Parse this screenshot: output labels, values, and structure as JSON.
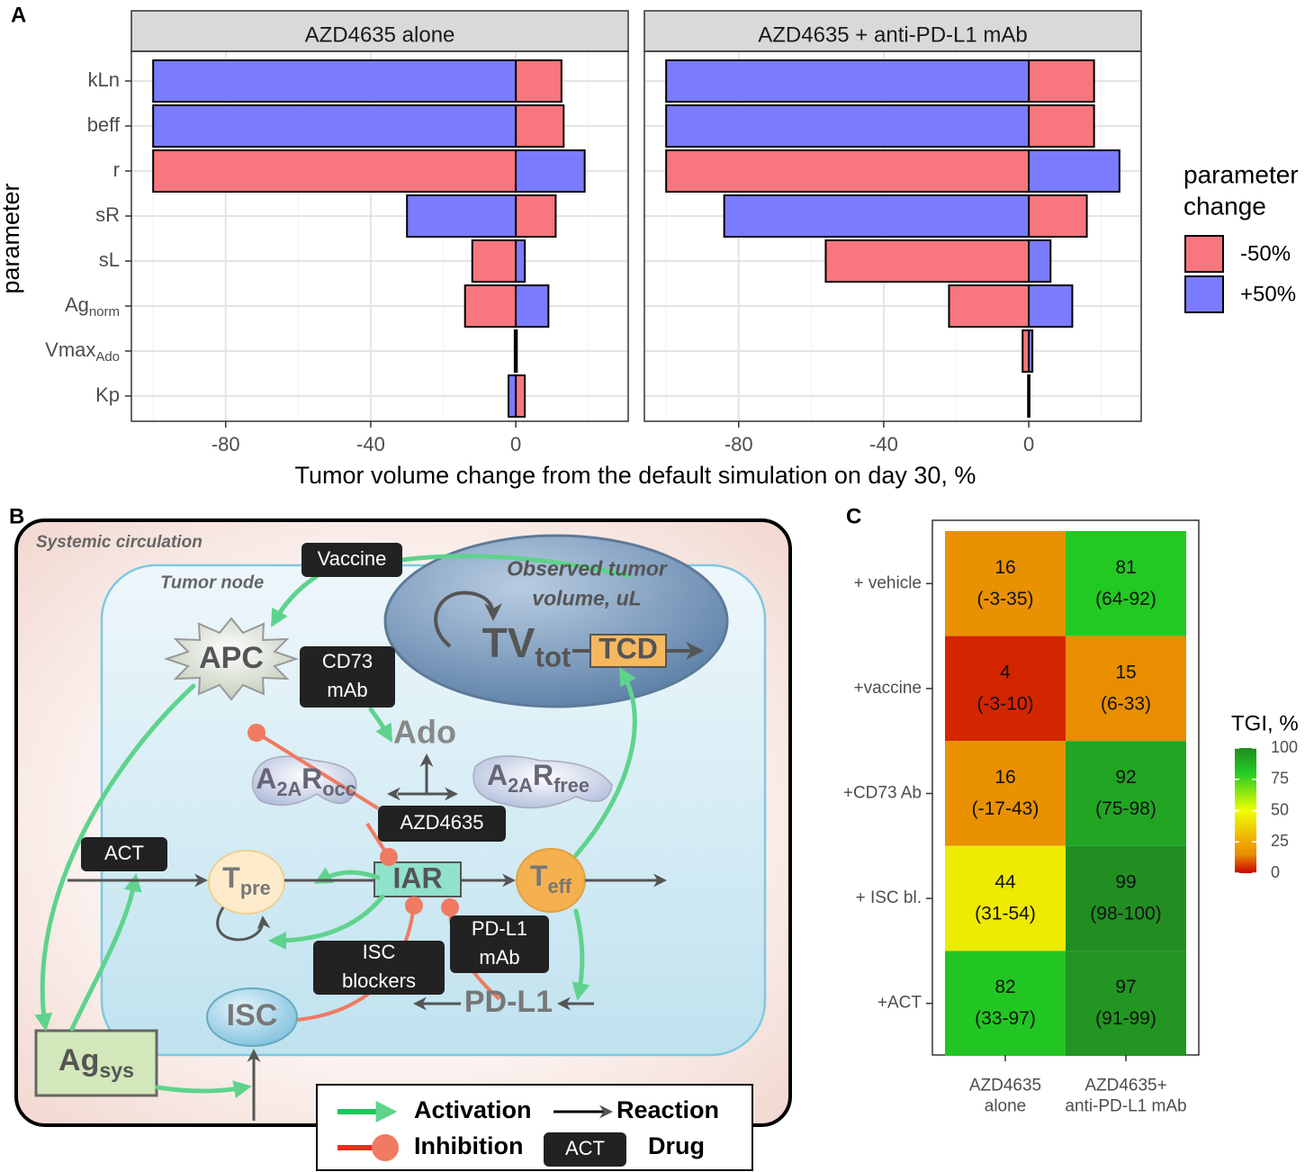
{
  "panel_labels": [
    "A",
    "B",
    "C"
  ],
  "chart_data": [
    {
      "type": "bar",
      "orientation": "horizontal",
      "facets": [
        "AZD4635 alone",
        "AZD4635 + anti-PD-L1 mAb"
      ],
      "categories": [
        "kLn",
        "beff",
        "r",
        "sR",
        "sL",
        {
          "text": "Ag",
          "sub": "norm"
        },
        {
          "text": "Vmax",
          "sub": "Ado"
        },
        "Kp"
      ],
      "series": [
        {
          "name": "-50%",
          "color": "#f8767d",
          "values": [
            [
              12.6,
              13.2,
              -100,
              11,
              -12,
              -14,
              0.3,
              2.5
            ],
            [
              18,
              18,
              -100,
              16,
              -56,
              -22,
              -1.7,
              0.2
            ]
          ]
        },
        {
          "name": "+50%",
          "color": "#7b7bff",
          "values": [
            [
              -100,
              -100,
              19,
              -30,
              2.5,
              9,
              -0.3,
              -2
            ],
            [
              -100,
              -100,
              25,
              -84,
              6,
              12,
              1,
              -0.2
            ]
          ]
        }
      ],
      "xlim": [
        -106,
        31
      ],
      "xticks": [
        -80,
        -40,
        0
      ],
      "x_minor_ticks": [
        -100,
        -60,
        -20,
        20
      ],
      "x_label": "Tumor volume change from the default simulation on day 30, %",
      "y_label": "parameter",
      "legend_title": [
        "parameter",
        "change"
      ],
      "grid": true
    },
    {
      "type": "heatmap",
      "rows": [
        "+ vehicle",
        "+vaccine",
        "+CD73 Ab",
        "+ ISC bl.",
        "+ACT"
      ],
      "columns": [
        [
          "AZD4635",
          "alone"
        ],
        [
          "AZD4635+",
          "anti-PD-L1 mAb"
        ]
      ],
      "values": [
        [
          16,
          81
        ],
        [
          4,
          15
        ],
        [
          16,
          92
        ],
        [
          44,
          99
        ],
        [
          82,
          97
        ]
      ],
      "intervals": [
        [
          "(-3-35)",
          "(64-92)"
        ],
        [
          "(-3-10)",
          "(6-33)"
        ],
        [
          "(-17-43)",
          "(75-98)"
        ],
        [
          "(31-54)",
          "(98-100)"
        ],
        [
          "(33-97)",
          "(91-99)"
        ]
      ],
      "colorbar_title": "TGI, %",
      "clim": [
        0,
        100
      ],
      "cticks": [
        0,
        25,
        50,
        75,
        100
      ],
      "colorscale": [
        [
          0,
          "#cc0000"
        ],
        [
          15,
          "#e88e00"
        ],
        [
          25,
          "#f0a800"
        ],
        [
          50,
          "#eeff00"
        ],
        [
          80,
          "#22cc22"
        ],
        [
          100,
          "#228b22"
        ]
      ]
    }
  ],
  "diagram": {
    "regions": {
      "systemic": "Systemic circulation",
      "tumor": "Tumor node",
      "observed": [
        "Observed tumor",
        "volume, uL"
      ]
    },
    "nodes": {
      "apc": "APC",
      "ado": "Ado",
      "a2ar_occ": [
        {
          "text": "A",
          "sub": "2A"
        },
        {
          "text": "R",
          "sub": "occ"
        }
      ],
      "a2ar_free": [
        {
          "text": "A",
          "sub": "2A"
        },
        {
          "text": "R",
          "sub": "free"
        }
      ],
      "tpre": [
        {
          "text": "T",
          "sub": "pre"
        }
      ],
      "iar": "IAR",
      "teff": [
        {
          "text": "T",
          "sub": "eff"
        }
      ],
      "isc": "ISC",
      "pdl1": "PD-L1",
      "agsys": [
        {
          "text": "Ag",
          "sub": "sys"
        }
      ],
      "tvtot": [
        {
          "text": "TV",
          "sub": "tot"
        }
      ],
      "tcd": "TCD"
    },
    "drugs": {
      "vaccine": "Vaccine",
      "cd73": [
        "CD73",
        "mAb"
      ],
      "azd": "AZD4635",
      "act": "ACT",
      "isc_blockers": [
        "ISC",
        "blockers"
      ],
      "pdl1_mab": [
        "PD-L1",
        "mAb"
      ]
    },
    "legend": {
      "activation": "Activation",
      "reaction": "Reaction",
      "inhibition": "Inhibition",
      "drug_example": "ACT",
      "drug": "Drug"
    }
  }
}
